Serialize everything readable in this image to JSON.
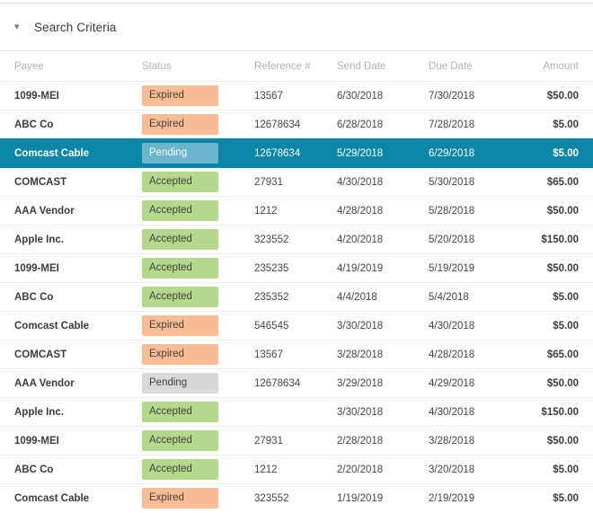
{
  "panel": {
    "title": "Search Criteria",
    "collapse_icon": "chevron-down-icon",
    "collapse_glyph": "▾"
  },
  "table": {
    "columns": [
      "Payee",
      "Status",
      "Reference #",
      "Send Date",
      "Due Date",
      "Amount"
    ],
    "rows": [
      {
        "payee": "1099-MEI",
        "status": "Expired",
        "reference": "13567",
        "send_date": "6/30/2018",
        "due_date": "7/30/2018",
        "amount": "$50.00",
        "selected": false
      },
      {
        "payee": "ABC Co",
        "status": "Expired",
        "reference": "12678634",
        "send_date": "6/28/2018",
        "due_date": "7/28/2018",
        "amount": "$5.00",
        "selected": false
      },
      {
        "payee": "Comcast Cable",
        "status": "Pending",
        "reference": "12678634",
        "send_date": "5/29/2018",
        "due_date": "6/29/2018",
        "amount": "$5.00",
        "selected": true
      },
      {
        "payee": "COMCAST",
        "status": "Accepted",
        "reference": "27931",
        "send_date": "4/30/2018",
        "due_date": "5/30/2018",
        "amount": "$65.00",
        "selected": false
      },
      {
        "payee": "AAA Vendor",
        "status": "Accepted",
        "reference": "1212",
        "send_date": "4/28/2018",
        "due_date": "5/28/2018",
        "amount": "$50.00",
        "selected": false
      },
      {
        "payee": "Apple Inc.",
        "status": "Accepted",
        "reference": "323552",
        "send_date": "4/20/2018",
        "due_date": "5/20/2018",
        "amount": "$150.00",
        "selected": false
      },
      {
        "payee": "1099-MEI",
        "status": "Accepted",
        "reference": "235235",
        "send_date": "4/19/2019",
        "due_date": "5/19/2019",
        "amount": "$50.00",
        "selected": false
      },
      {
        "payee": "ABC Co",
        "status": "Accepted",
        "reference": "235352",
        "send_date": "4/4/2018",
        "due_date": "5/4/2018",
        "amount": "$5.00",
        "selected": false
      },
      {
        "payee": "Comcast Cable",
        "status": "Expired",
        "reference": "546545",
        "send_date": "3/30/2018",
        "due_date": "4/30/2018",
        "amount": "$5.00",
        "selected": false
      },
      {
        "payee": "COMCAST",
        "status": "Expired",
        "reference": "13567",
        "send_date": "3/28/2018",
        "due_date": "4/28/2018",
        "amount": "$65.00",
        "selected": false
      },
      {
        "payee": "AAA Vendor",
        "status": "Pending",
        "reference": "12678634",
        "send_date": "3/29/2018",
        "due_date": "4/29/2018",
        "amount": "$50.00",
        "selected": false
      },
      {
        "payee": "Apple Inc.",
        "status": "Accepted",
        "reference": "",
        "send_date": "3/30/2018",
        "due_date": "4/30/2018",
        "amount": "$150.00",
        "selected": false
      },
      {
        "payee": "1099-MEI",
        "status": "Accepted",
        "reference": "27931",
        "send_date": "2/28/2018",
        "due_date": "3/28/2018",
        "amount": "$50.00",
        "selected": false
      },
      {
        "payee": "ABC Co",
        "status": "Accepted",
        "reference": "1212",
        "send_date": "2/20/2018",
        "due_date": "3/20/2018",
        "amount": "$5.00",
        "selected": false
      },
      {
        "payee": "Comcast Cable",
        "status": "Expired",
        "reference": "323552",
        "send_date": "1/19/2019",
        "due_date": "2/19/2019",
        "amount": "$5.00",
        "selected": false
      }
    ]
  },
  "colors": {
    "selected_row": "#0b86a6",
    "badge_expired": "#f9bd95",
    "badge_accepted": "#b5d98c",
    "badge_pending": "#d9d9d9",
    "badge_pending_selected": "#6ab4cc"
  }
}
